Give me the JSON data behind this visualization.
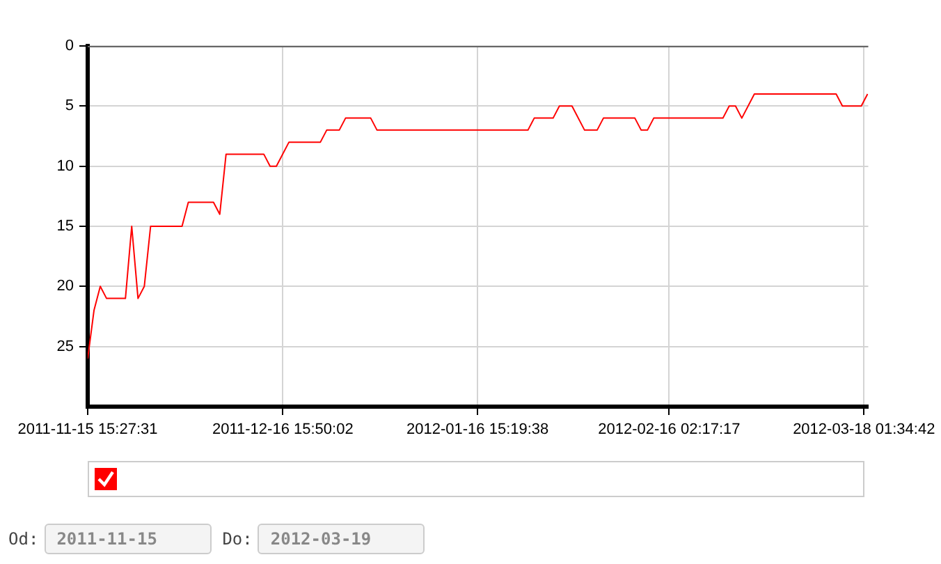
{
  "chart_data": {
    "type": "line",
    "x": [
      "2011-11-15T15:27",
      "2011-11-16T15:27",
      "2011-11-17T15:27",
      "2011-11-18T15:27",
      "2011-11-21T15:27",
      "2011-11-22T15:27",
      "2011-11-23T15:27",
      "2011-11-24T15:27",
      "2011-11-25T15:27",
      "2011-11-30T15:27",
      "2011-12-01T15:27",
      "2011-12-05T15:27",
      "2011-12-06T15:27",
      "2011-12-07T15:27",
      "2011-12-13T15:27",
      "2011-12-14T15:27",
      "2011-12-15T15:27",
      "2011-12-17T15:27",
      "2011-12-22T15:27",
      "2011-12-23T15:27",
      "2011-12-25T15:27",
      "2011-12-26T15:27",
      "2011-12-30T15:27",
      "2011-12-31T15:27",
      "2012-01-24T15:27",
      "2012-01-25T15:27",
      "2012-01-28T15:27",
      "2012-01-29T15:27",
      "2012-01-31T15:27",
      "2012-02-02T15:27",
      "2012-02-04T15:27",
      "2012-02-05T15:27",
      "2012-02-10T15:27",
      "2012-02-11T15:27",
      "2012-02-12T15:27",
      "2012-02-13T15:27",
      "2012-02-24T15:27",
      "2012-02-25T15:27",
      "2012-02-26T15:27",
      "2012-02-27T15:27",
      "2012-02-29T15:27",
      "2012-03-13T15:27",
      "2012-03-14T15:27",
      "2012-03-17T15:27",
      "2012-03-18T15:27"
    ],
    "series": [
      {
        "color": "#ff0000",
        "values": [
          26,
          22,
          20,
          21,
          21,
          15,
          21,
          20,
          15,
          15,
          13,
          13,
          14,
          9,
          9,
          10,
          10,
          8,
          8,
          7,
          7,
          6,
          6,
          7,
          7,
          6,
          6,
          5,
          5,
          7,
          7,
          6,
          6,
          7,
          7,
          6,
          6,
          5,
          5,
          6,
          4,
          4,
          5,
          5,
          4
        ]
      }
    ],
    "xlim": [
      "2011-11-15T15:27",
      "2012-03-18T18:00"
    ],
    "xticks": [
      {
        "value": "2011-11-15T15:27:31",
        "label": "2011-11-15 15:27:31"
      },
      {
        "value": "2011-12-16T15:50:02",
        "label": "2011-12-16 15:50:02"
      },
      {
        "value": "2012-01-16T15:19:38",
        "label": "2012-01-16 15:19:38"
      },
      {
        "value": "2012-02-16T02:17:17",
        "label": "2012-02-16 02:17:17"
      },
      {
        "value": "2012-03-18T01:34:42",
        "label": "2012-03-18 01:34:42"
      }
    ],
    "ylim": [
      30,
      0
    ],
    "yticks": [
      0,
      5,
      10,
      15,
      20,
      25
    ],
    "grid": true,
    "marker": "none",
    "line_style": "solid",
    "annotations": [
      "Od:",
      "2011-11-15",
      "Do:",
      "2012-03-19"
    ]
  }
}
